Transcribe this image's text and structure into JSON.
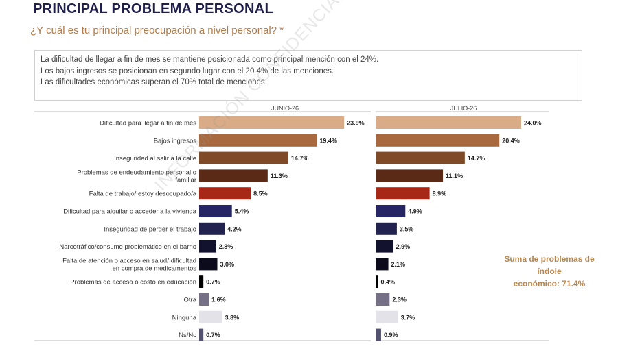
{
  "header": {
    "title": "PRINCIPAL PROBLEMA PERSONAL",
    "subtitle": "¿Y cuál es tu principal preocupación a nivel personal? *"
  },
  "summary": {
    "lines": [
      "La dificultad de llegar a fin de mes se mantiene posicionada como principal mención con el 24%.",
      "Los bajos ingresos se posicionan en segundo lugar con el 20.4% de las menciones.",
      "Las dificultades económicas superan el 70% total de menciones."
    ]
  },
  "side_note": {
    "lines": [
      "Suma de problemas de",
      "índole",
      "económico: 71.4%"
    ]
  },
  "watermark": "INFORMACIÓN CONFIDENCIAL",
  "chart_data": {
    "type": "bar",
    "orientation": "horizontal",
    "categories": [
      "Dificultad para llegar a fin de mes",
      "Bajos ingresos",
      "Inseguridad al salir a la calle",
      "Problemas de endeudamiento personal o familiar",
      "Falta de trabajo/ estoy desocupado/a",
      "Dificultad para alquilar o acceder a la vivienda",
      "Inseguridad de perder el trabajo",
      "Narcotráfico/consumo problemático en el barrio",
      "Falta de atención o acceso en salud/ dificultad en compra de medicamentos",
      "Problemas de acceso o costo en educación",
      "Otra",
      "Ninguna",
      "Ns/Nc"
    ],
    "category_lines": [
      [
        "Dificultad para llegar a fin de mes"
      ],
      [
        "Bajos ingresos"
      ],
      [
        "Inseguridad al salir a la calle"
      ],
      [
        "Problemas de endeudamiento personal o",
        "familiar"
      ],
      [
        "Falta de trabajo/ estoy desocupado/a"
      ],
      [
        "Dificultad para alquilar o acceder a la vivienda"
      ],
      [
        "Inseguridad de perder el trabajo"
      ],
      [
        "Narcotráfico/consumo problemático en el barrio"
      ],
      [
        "Falta de atención o acceso en salud/ dificultad",
        "en compra de medicamentos"
      ],
      [
        "Problemas de acceso o costo en educación"
      ],
      [
        "Otra"
      ],
      [
        "Ninguna"
      ],
      [
        "Ns/Nc"
      ]
    ],
    "colors": [
      "#d9ab86",
      "#a8693f",
      "#7f4a27",
      "#5b2a16",
      "#a82818",
      "#262664",
      "#22224f",
      "#12122e",
      "#0b0b1c",
      "#000000",
      "#757085",
      "#e2e2e8",
      "#525270"
    ],
    "series": [
      {
        "name": "JUNIO-26",
        "values": [
          23.9,
          19.4,
          14.7,
          11.3,
          8.5,
          5.4,
          4.2,
          2.8,
          3.0,
          0.7,
          1.6,
          3.8,
          0.7
        ],
        "labels": [
          "23.9%",
          "19.4%",
          "14.7%",
          "11.3%",
          "8.5%",
          "5.4%",
          "4.2%",
          "2.8%",
          "3.0%",
          "0.7%",
          "1.6%",
          "3.8%",
          "0.7%"
        ]
      },
      {
        "name": "JULIO-26",
        "values": [
          24.0,
          20.4,
          14.7,
          11.1,
          8.9,
          4.9,
          3.5,
          2.9,
          2.1,
          0.4,
          2.3,
          3.7,
          0.9
        ],
        "labels": [
          "24.0%",
          "20.4%",
          "14.7%",
          "11.1%",
          "8.9%",
          "4.9%",
          "3.5%",
          "2.9%",
          "2.1%",
          "0.4%",
          "2.3%",
          "3.7%",
          "0.9%"
        ]
      }
    ],
    "unit": "%",
    "xlim": [
      0,
      24
    ]
  }
}
